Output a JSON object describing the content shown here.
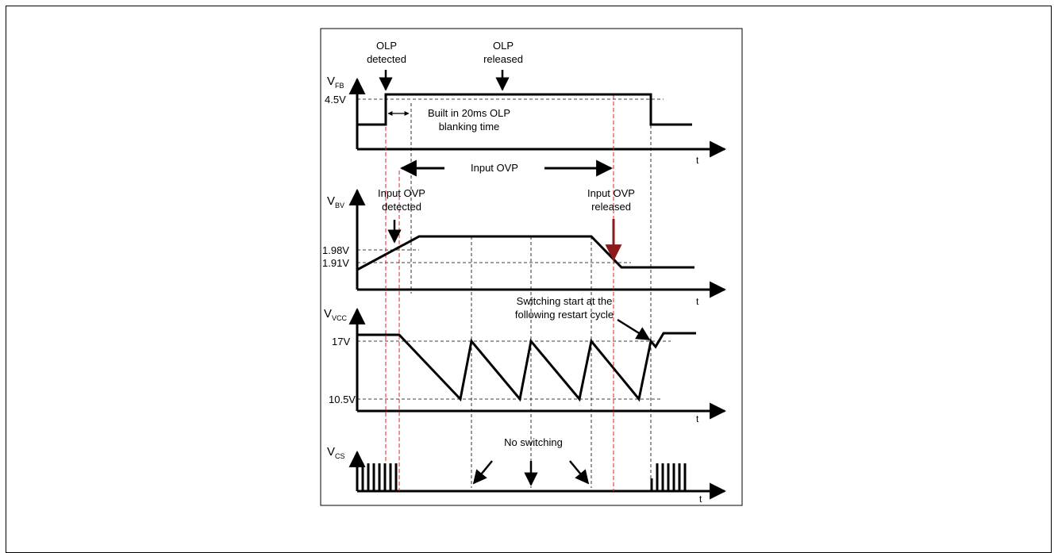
{
  "diagram": {
    "labels": {
      "olp_detected": [
        "OLP",
        "detected"
      ],
      "olp_released": [
        "OLP",
        "released"
      ],
      "blanking": [
        "Built in 20ms OLP",
        "blanking time"
      ],
      "input_ovp": "Input OVP",
      "input_ovp_detected": [
        "Input OVP",
        "detected"
      ],
      "input_ovp_released": [
        "Input OVP",
        "released"
      ],
      "switching_start": [
        "Switching start at the",
        "following restart cycle"
      ],
      "no_switching": "No switching"
    },
    "traces": {
      "vfb": {
        "name_main": "V",
        "name_sub": "FB",
        "axis": "t",
        "levels": [
          "4.5V"
        ]
      },
      "vbv": {
        "name_main": "V",
        "name_sub": "BV",
        "axis": "t",
        "levels": [
          "1.98V",
          "1.91V"
        ]
      },
      "vvcc": {
        "name_main": "V",
        "name_sub": "VCC",
        "axis": "t",
        "levels": [
          "17V",
          "10.5V"
        ]
      },
      "vcs": {
        "name_main": "V",
        "name_sub": "CS",
        "axis": "t"
      }
    },
    "colors": {
      "line": "#000000",
      "marker": "#e02020",
      "guide": "#000000",
      "release_arrow": "#8b1a1a"
    }
  }
}
